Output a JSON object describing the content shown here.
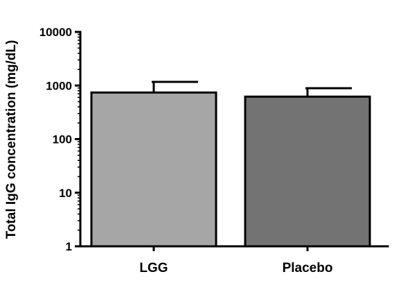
{
  "chart_data": {
    "type": "bar",
    "title": "",
    "xlabel": "",
    "ylabel": "Total  IgG concentration (mg/dL)",
    "yscale": "log10",
    "ylim": [
      1,
      10000
    ],
    "yticks": [
      1,
      10,
      100,
      1000,
      10000
    ],
    "ytick_labels": [
      "1",
      "10",
      "100",
      "1000",
      "10000"
    ],
    "categories": [
      "LGG",
      "Placebo"
    ],
    "values": [
      740,
      620
    ],
    "error_upper": [
      1170,
      890
    ],
    "bar_colors": [
      "#a6a6a6",
      "#737373"
    ],
    "bar_edge_color": "#000000",
    "grid": false,
    "legend": "none"
  }
}
